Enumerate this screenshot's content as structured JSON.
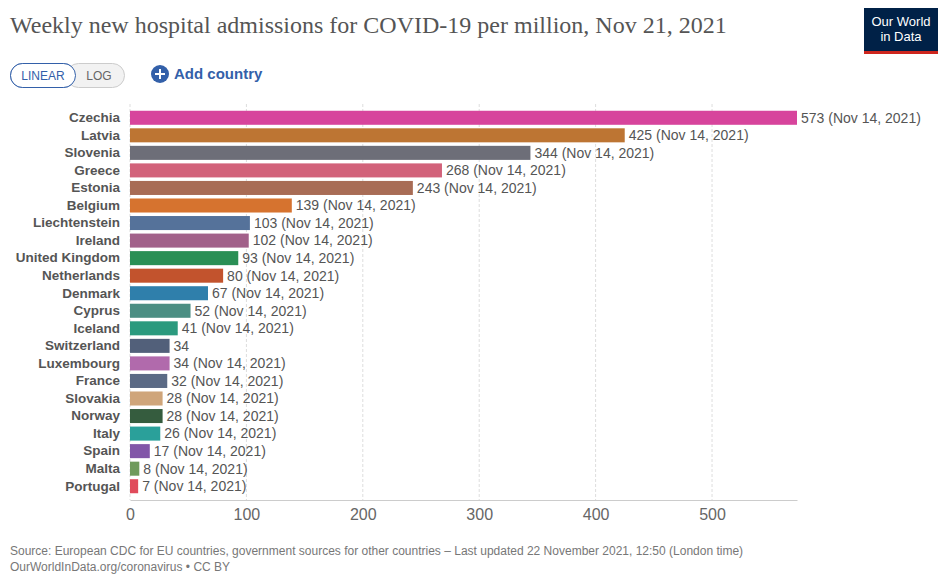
{
  "chart_data": {
    "type": "bar",
    "title": "Weekly new hospital admissions for COVID-19 per million, Nov 21, 2021",
    "controls": [
      "LINEAR",
      "LOG",
      "Add country"
    ],
    "logo": [
      "Our World",
      "in Data"
    ],
    "source": [
      "Source: European CDC for EU countries, government sources for other countries – Last updated 22 November 2021, 12:50 (London time)",
      "OurWorldInData.org/coronavirus • CC BY"
    ],
    "orientation": "horizontal",
    "categories": [
      "Czechia",
      "Latvia",
      "Slovenia",
      "Greece",
      "Estonia",
      "Belgium",
      "Liechtenstein",
      "Ireland",
      "United Kingdom",
      "Netherlands",
      "Denmark",
      "Cyprus",
      "Iceland",
      "Switzerland",
      "Luxembourg",
      "France",
      "Slovakia",
      "Norway",
      "Italy",
      "Spain",
      "Malta",
      "Portugal"
    ],
    "values": [
      573,
      425,
      344,
      268,
      243,
      139,
      103,
      102,
      93,
      80,
      67,
      52,
      41,
      34,
      34,
      32,
      28,
      28,
      26,
      17,
      8,
      7
    ],
    "value_labels": [
      "573 (Nov 14, 2021)",
      "425 (Nov 14, 2021)",
      "344 (Nov 14, 2021)",
      "268 (Nov 14, 2021)",
      "243 (Nov 14, 2021)",
      "139 (Nov 14, 2021)",
      "103 (Nov 14, 2021)",
      "102 (Nov 14, 2021)",
      "93 (Nov 14, 2021)",
      "80 (Nov 14, 2021)",
      "67 (Nov 14, 2021)",
      "52 (Nov 14, 2021)",
      "41 (Nov 14, 2021)",
      "34",
      "34 (Nov 14, 2021)",
      "32 (Nov 14, 2021)",
      "28 (Nov 14, 2021)",
      "28 (Nov 14, 2021)",
      "26 (Nov 14, 2021)",
      "17 (Nov 14, 2021)",
      "8 (Nov 14, 2021)",
      "7 (Nov 14, 2021)"
    ],
    "colors": [
      "#d7449c",
      "#bd7533",
      "#6d6e78",
      "#d2627a",
      "#a86c55",
      "#d6732f",
      "#55729a",
      "#a2618a",
      "#2a8f55",
      "#c2532d",
      "#2f7fab",
      "#4b8e83",
      "#2b9a7e",
      "#52607a",
      "#b16aac",
      "#5b6a85",
      "#cfa57a",
      "#355c3e",
      "#2aa09a",
      "#8256a8",
      "#6f9a5c",
      "#e04b5b"
    ],
    "xlim": [
      0,
      573
    ],
    "xticks": [
      0,
      100,
      200,
      300,
      400,
      500
    ],
    "grid": true,
    "data_labels": true
  }
}
